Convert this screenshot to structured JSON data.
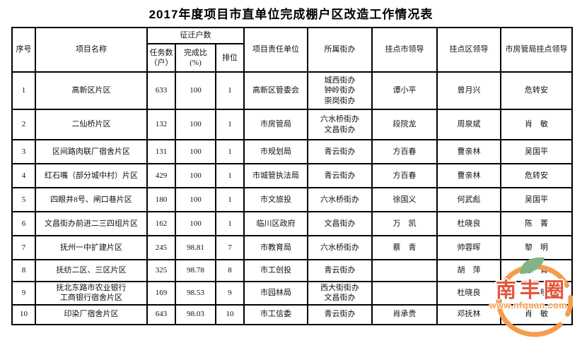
{
  "page": {
    "title": "2017年度项目市直单位完成棚户区改造工作情况表"
  },
  "table": {
    "headers": {
      "serial": "序号",
      "project_name": "项目名称",
      "relocated_households_group": "征迁户数",
      "task_count": "任务数\n（户）",
      "completion_pct": "完成比\n(%)",
      "rank": "排位",
      "responsible_unit": "项目责任单位",
      "street_office": "所属街办",
      "city_leader": "挂点市领导",
      "district_leader": "挂点区领导",
      "housing_bureau_leader": "市房管局挂点领导"
    },
    "rows": [
      {
        "no": "1",
        "name": "高新区片区",
        "task": "633",
        "pct": "100",
        "rank": "1",
        "unit": "高新区管委会",
        "street": "城西街办\n钟岭街办\n崇岗街办",
        "city_leader": "谭小平",
        "district_leader": "曾月兴",
        "bureau_leader": "危转安"
      },
      {
        "no": "2",
        "name": "二仙桥片区",
        "task": "132",
        "pct": "100",
        "rank": "1",
        "unit": "市房管局",
        "street": "六水桥街办\n文昌街办",
        "city_leader": "段院龙",
        "district_leader": "周泉斌",
        "bureau_leader": "肖　敏"
      },
      {
        "no": "3",
        "name": "区间路肉联厂宿舍片区",
        "task": "131",
        "pct": "100",
        "rank": "1",
        "unit": "市规划局",
        "street": "青云街办",
        "city_leader": "方百春",
        "district_leader": "曹亲林",
        "bureau_leader": "吴国平"
      },
      {
        "no": "4",
        "name": "红石嘴（部分城中村）片区",
        "task": "429",
        "pct": "100",
        "rank": "1",
        "unit": "市城管执法局",
        "street": "青云街办",
        "city_leader": "方百春",
        "district_leader": "曹亲林",
        "bureau_leader": "危转安"
      },
      {
        "no": "5",
        "name": "四眼井8号、闸口巷片区",
        "task": "180",
        "pct": "100",
        "rank": "1",
        "unit": "市文旅投",
        "street": "六水桥街办",
        "city_leader": "徐国义",
        "district_leader": "何武彪",
        "bureau_leader": "吴国平"
      },
      {
        "no": "6",
        "name": "文昌街办前进二三四组片区",
        "task": "162",
        "pct": "100",
        "rank": "1",
        "unit": "临川区政府",
        "street": "文昌街办",
        "city_leader": "万　凯",
        "district_leader": "杜晓良",
        "bureau_leader": "陈　菁"
      },
      {
        "no": "7",
        "name": "抚州一中扩建片区",
        "task": "245",
        "pct": "98.81",
        "rank": "7",
        "unit": "市教育局",
        "street": "六水桥街办",
        "city_leader": "蔡　青",
        "district_leader": "帅蓉晖",
        "bureau_leader": "黎　明"
      },
      {
        "no": "8",
        "name": "抚纺二区、三区片区",
        "task": "325",
        "pct": "98.78",
        "rank": "8",
        "unit": "市工创投",
        "street": "青云街办",
        "city_leader": "",
        "district_leader": "胡　萍",
        "bureau_leader": "陈　菁"
      },
      {
        "no": "9",
        "name": "抚北东路市农业银行\n工商银行宿舍片区",
        "task": "169",
        "pct": "98.53",
        "rank": "9",
        "unit": "市园林局",
        "street": "西大街街办\n文昌街办",
        "city_leader": "",
        "district_leader": "杜晓良",
        "bureau_leader": "黎　明"
      },
      {
        "no": "10",
        "name": "印染厂宿舍片区",
        "task": "643",
        "pct": "98.03",
        "rank": "10",
        "unit": "市工信委",
        "street": "青云街办",
        "city_leader": "肖承贵",
        "district_leader": "邓抚林",
        "bureau_leader": "肖　敏"
      }
    ]
  },
  "watermark": {
    "brand_text": "南丰圈",
    "url_text": "www.nfquan.com",
    "ring_color": "#f59d4d",
    "brand_color": "#e4573d",
    "leaf_color": "#85b388"
  }
}
